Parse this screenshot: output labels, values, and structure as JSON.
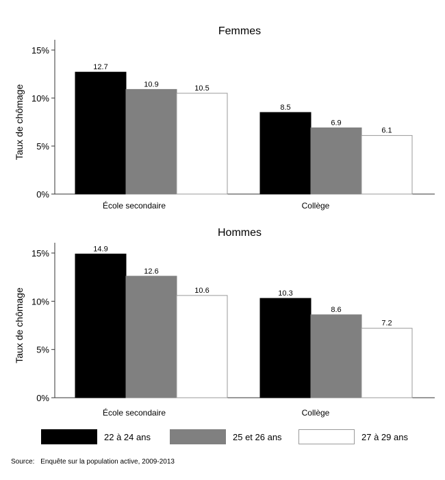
{
  "chart_data": [
    {
      "type": "bar",
      "title": "Femmes",
      "xlabel": "",
      "ylabel": "Taux de chômage",
      "ylim": [
        0,
        15
      ],
      "yticks": [
        "0%",
        "5%",
        "10%",
        "15%"
      ],
      "categories": [
        "École secondaire",
        "Collège"
      ],
      "series": [
        {
          "name": "22 à 24 ans",
          "color": "#000000",
          "values": [
            12.7,
            8.5
          ]
        },
        {
          "name": "25 et 26 ans",
          "color": "#808080",
          "values": [
            10.9,
            6.9
          ]
        },
        {
          "name": "27 à 29 ans",
          "color": "#ffffff",
          "values": [
            10.5,
            6.1
          ]
        }
      ],
      "grid": false,
      "legend": "bottom"
    },
    {
      "type": "bar",
      "title": "Hommes",
      "xlabel": "",
      "ylabel": "Taux de chômage",
      "ylim": [
        0,
        15
      ],
      "yticks": [
        "0%",
        "5%",
        "10%",
        "15%"
      ],
      "categories": [
        "École secondaire",
        "Collège"
      ],
      "series": [
        {
          "name": "22 à 24 ans",
          "color": "#000000",
          "values": [
            14.9,
            10.3
          ]
        },
        {
          "name": "25 et 26 ans",
          "color": "#808080",
          "values": [
            12.6,
            8.6
          ]
        },
        {
          "name": "27 à 29 ans",
          "color": "#ffffff",
          "values": [
            10.6,
            7.2
          ]
        }
      ],
      "grid": false,
      "legend": "bottom"
    }
  ],
  "legend": {
    "items": [
      {
        "label": "22 à 24 ans",
        "color": "#000000"
      },
      {
        "label": "25 et 26 ans",
        "color": "#808080"
      },
      {
        "label": "27 à 29 ans",
        "color": "#ffffff"
      }
    ]
  },
  "source": {
    "label": "Source:",
    "text": "Enquête sur la population active, 2009-2013"
  }
}
